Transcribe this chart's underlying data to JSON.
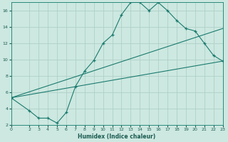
{
  "xlabel": "Humidex (Indice chaleur)",
  "xlim": [
    0,
    23
  ],
  "ylim": [
    2,
    17
  ],
  "bg_color": "#cce8e0",
  "line_color": "#1a7a6e",
  "grid_color": "#aaccc4",
  "xticks": [
    0,
    2,
    3,
    4,
    5,
    6,
    7,
    8,
    9,
    10,
    11,
    12,
    13,
    14,
    15,
    16,
    17,
    18,
    19,
    20,
    21,
    22,
    23
  ],
  "yticks": [
    2,
    4,
    6,
    8,
    10,
    12,
    14,
    16
  ],
  "curve1_x": [
    0,
    2,
    3,
    4,
    5,
    6,
    7,
    8,
    9,
    10,
    11,
    12,
    13,
    14,
    15,
    16,
    17,
    18,
    19,
    20,
    21,
    22,
    23
  ],
  "curve1_y": [
    5.3,
    3.7,
    2.8,
    2.8,
    2.2,
    3.5,
    6.7,
    8.6,
    9.9,
    12.0,
    13.0,
    15.5,
    17.0,
    17.0,
    16.0,
    17.0,
    16.0,
    14.8,
    13.8,
    13.5,
    12.0,
    10.5,
    9.8
  ],
  "line1_x": [
    0,
    23
  ],
  "line1_y": [
    5.3,
    9.8
  ],
  "line2_x": [
    0,
    23
  ],
  "line2_y": [
    5.3,
    13.8
  ]
}
